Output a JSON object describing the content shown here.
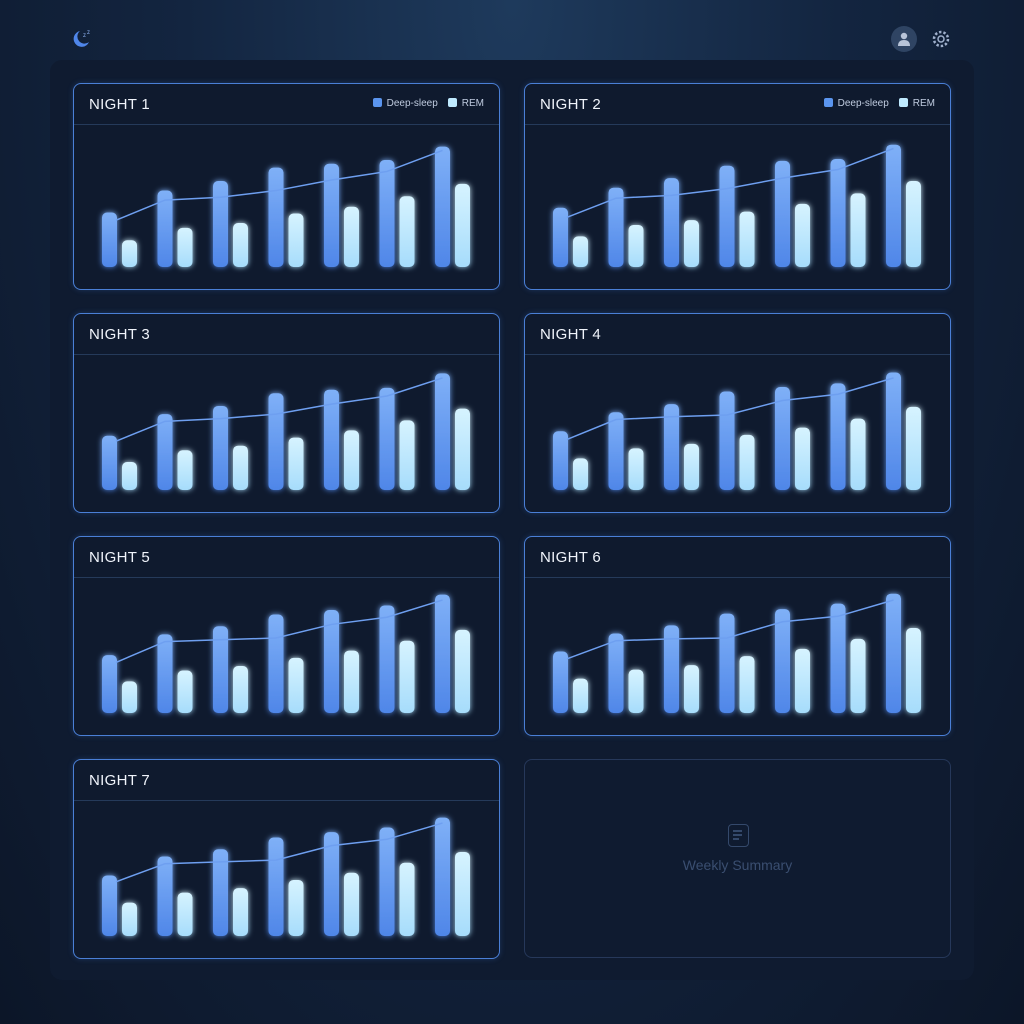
{
  "header": {
    "logo_icon": "moon-sleep-icon",
    "profile_icon": "user-icon",
    "settings_icon": "gear-icon"
  },
  "colors": {
    "deep": "#5b95ef",
    "rem": "#bfeaff",
    "line": "#6e9ff0",
    "card_border": "#4a7fd6"
  },
  "legend": {
    "deep_label": "Deep-sleep",
    "rem_label": "REM"
  },
  "summary": {
    "label": "Weekly Summary",
    "icon": "document-icon"
  },
  "chart_data": [
    {
      "type": "bar",
      "title": "NIGHT 1",
      "legend": true,
      "deep": [
        57,
        80,
        90,
        104,
        108,
        112,
        126
      ],
      "rem": [
        28,
        41,
        46,
        56,
        63,
        74,
        87
      ],
      "trend": [
        49,
        70,
        73,
        80,
        91,
        100,
        122
      ]
    },
    {
      "type": "bar",
      "title": "NIGHT 2",
      "legend": true,
      "deep": [
        62,
        83,
        93,
        106,
        111,
        113,
        128
      ],
      "rem": [
        32,
        44,
        49,
        58,
        66,
        77,
        90
      ],
      "trend": [
        52,
        72,
        75,
        82,
        93,
        102,
        124
      ]
    },
    {
      "type": "bar",
      "title": "NIGHT 3",
      "legend": false,
      "deep": [
        60,
        84,
        93,
        107,
        111,
        113,
        129
      ],
      "rem": [
        31,
        44,
        49,
        58,
        66,
        77,
        90
      ],
      "trend": [
        54,
        76,
        79,
        84,
        95,
        104,
        124
      ]
    },
    {
      "type": "bar",
      "title": "NIGHT 4",
      "legend": false,
      "deep": [
        65,
        86,
        95,
        109,
        114,
        118,
        130
      ],
      "rem": [
        35,
        46,
        51,
        61,
        69,
        79,
        92
      ],
      "trend": [
        56,
        78,
        81,
        83,
        99,
        106,
        124
      ]
    },
    {
      "type": "bar",
      "title": "NIGHT 5",
      "legend": false,
      "deep": [
        64,
        87,
        96,
        109,
        114,
        119,
        131
      ],
      "rem": [
        35,
        47,
        52,
        61,
        69,
        80,
        92
      ],
      "trend": [
        56,
        79,
        81,
        83,
        98,
        106,
        125
      ]
    },
    {
      "type": "bar",
      "title": "NIGHT 6",
      "legend": false,
      "deep": [
        68,
        88,
        97,
        110,
        115,
        121,
        132
      ],
      "rem": [
        38,
        48,
        53,
        63,
        71,
        82,
        94
      ],
      "trend": [
        60,
        80,
        82,
        83,
        101,
        107,
        125
      ]
    },
    {
      "type": "bar",
      "title": "NIGHT 7",
      "legend": false,
      "deep": [
        67,
        88,
        96,
        109,
        115,
        120,
        131
      ],
      "rem": [
        37,
        48,
        53,
        62,
        70,
        81,
        93
      ],
      "trend": [
        60,
        80,
        82,
        84,
        100,
        107,
        125
      ]
    }
  ]
}
